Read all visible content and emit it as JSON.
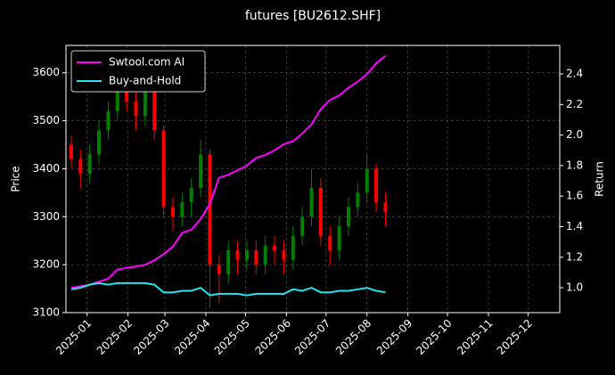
{
  "chart_data": {
    "type": "candlestick",
    "title": "futures [BU2612.SHF]",
    "ylabel": "Price",
    "y2label": "Return",
    "x": [
      "2024-12-20",
      "2024-12-27",
      "2025-01-03",
      "2025-01-10",
      "2025-01-17",
      "2025-01-24",
      "2025-01-31",
      "2025-02-07",
      "2025-02-14",
      "2025-02-21",
      "2025-02-28",
      "2025-03-07",
      "2025-03-14",
      "2025-03-21",
      "2025-03-28",
      "2025-04-04",
      "2025-04-11",
      "2025-04-18",
      "2025-04-25",
      "2025-05-02",
      "2025-05-09",
      "2025-05-16",
      "2025-05-23",
      "2025-05-30",
      "2025-06-06",
      "2025-06-13",
      "2025-06-20",
      "2025-06-27",
      "2025-07-04",
      "2025-07-11",
      "2025-07-18",
      "2025-07-25",
      "2025-08-01",
      "2025-08-08",
      "2025-08-15"
    ],
    "open": [
      3450,
      3420,
      3390,
      3430,
      3480,
      3520,
      3560,
      3540,
      3510,
      3560,
      3480,
      3320,
      3300,
      3330,
      3360,
      3430,
      3200,
      3180,
      3230,
      3210,
      3230,
      3200,
      3240,
      3230,
      3210,
      3260,
      3300,
      3360,
      3260,
      3230,
      3280,
      3320,
      3350,
      3400,
      3330
    ],
    "high": [
      3470,
      3440,
      3450,
      3500,
      3540,
      3580,
      3590,
      3560,
      3590,
      3570,
      3490,
      3340,
      3350,
      3380,
      3460,
      3440,
      3220,
      3250,
      3250,
      3250,
      3250,
      3260,
      3260,
      3250,
      3280,
      3320,
      3400,
      3380,
      3280,
      3300,
      3340,
      3370,
      3430,
      3410,
      3350
    ],
    "low": [
      3400,
      3360,
      3370,
      3410,
      3460,
      3500,
      3520,
      3480,
      3490,
      3460,
      3300,
      3270,
      3280,
      3300,
      3340,
      3110,
      3120,
      3160,
      3180,
      3190,
      3180,
      3180,
      3200,
      3180,
      3190,
      3240,
      3280,
      3240,
      3200,
      3210,
      3260,
      3300,
      3330,
      3310,
      3280
    ],
    "close": [
      3420,
      3390,
      3430,
      3480,
      3520,
      3560,
      3540,
      3510,
      3560,
      3480,
      3320,
      3300,
      3330,
      3360,
      3430,
      3200,
      3180,
      3230,
      3210,
      3230,
      3200,
      3240,
      3230,
      3210,
      3260,
      3300,
      3360,
      3260,
      3230,
      3280,
      3320,
      3350,
      3400,
      3330,
      3310
    ],
    "up_color": "#008000",
    "down_color": "#ff0000",
    "series": [
      {
        "name": "Swtool.com AI",
        "color": "#ff00ff",
        "axis": "y2",
        "values": [
          1.0,
          1.01,
          1.02,
          1.04,
          1.06,
          1.12,
          1.13,
          1.14,
          1.15,
          1.18,
          1.22,
          1.27,
          1.36,
          1.38,
          1.45,
          1.55,
          1.72,
          1.74,
          1.77,
          1.8,
          1.85,
          1.87,
          1.9,
          1.94,
          1.96,
          2.01,
          2.07,
          2.17,
          2.23,
          2.26,
          2.31,
          2.35,
          2.4,
          2.47,
          2.52
        ]
      },
      {
        "name": "Buy-and-Hold",
        "color": "#22e5ee",
        "axis": "y2",
        "values": [
          0.99,
          1.0,
          1.02,
          1.03,
          1.02,
          1.03,
          1.03,
          1.03,
          1.03,
          1.02,
          0.97,
          0.97,
          0.98,
          0.98,
          1.0,
          0.95,
          0.96,
          0.96,
          0.96,
          0.95,
          0.96,
          0.96,
          0.96,
          0.96,
          0.99,
          0.98,
          1.0,
          0.97,
          0.97,
          0.98,
          0.98,
          0.99,
          1.0,
          0.98,
          0.97
        ]
      }
    ],
    "xlim": [
      "2024-12-16",
      "2025-12-25"
    ],
    "xticks": [
      {
        "value": "2025-01-01",
        "label": "2025-01"
      },
      {
        "value": "2025-02-01",
        "label": "2025-02"
      },
      {
        "value": "2025-03-01",
        "label": "2025-03"
      },
      {
        "value": "2025-04-01",
        "label": "2025-04"
      },
      {
        "value": "2025-05-01",
        "label": "2025-05"
      },
      {
        "value": "2025-06-01",
        "label": "2025-06"
      },
      {
        "value": "2025-07-01",
        "label": "2025-07"
      },
      {
        "value": "2025-08-01",
        "label": "2025-08"
      },
      {
        "value": "2025-09-01",
        "label": "2025-09"
      },
      {
        "value": "2025-10-01",
        "label": "2025-10"
      },
      {
        "value": "2025-11-01",
        "label": "2025-11"
      },
      {
        "value": "2025-12-01",
        "label": "2025-12"
      }
    ],
    "ylim": [
      3100,
      3657
    ],
    "yticks": [
      3100,
      3200,
      3300,
      3400,
      3500,
      3600
    ],
    "y2lim": [
      0.837,
      2.587
    ],
    "y2ticks": [
      {
        "value": 1,
        "label": "1.0"
      },
      1.2,
      1.4,
      1.6,
      1.8,
      {
        "value": 2,
        "label": "2.0"
      },
      2.2,
      2.4
    ],
    "grid": true,
    "legend": "upper left"
  }
}
